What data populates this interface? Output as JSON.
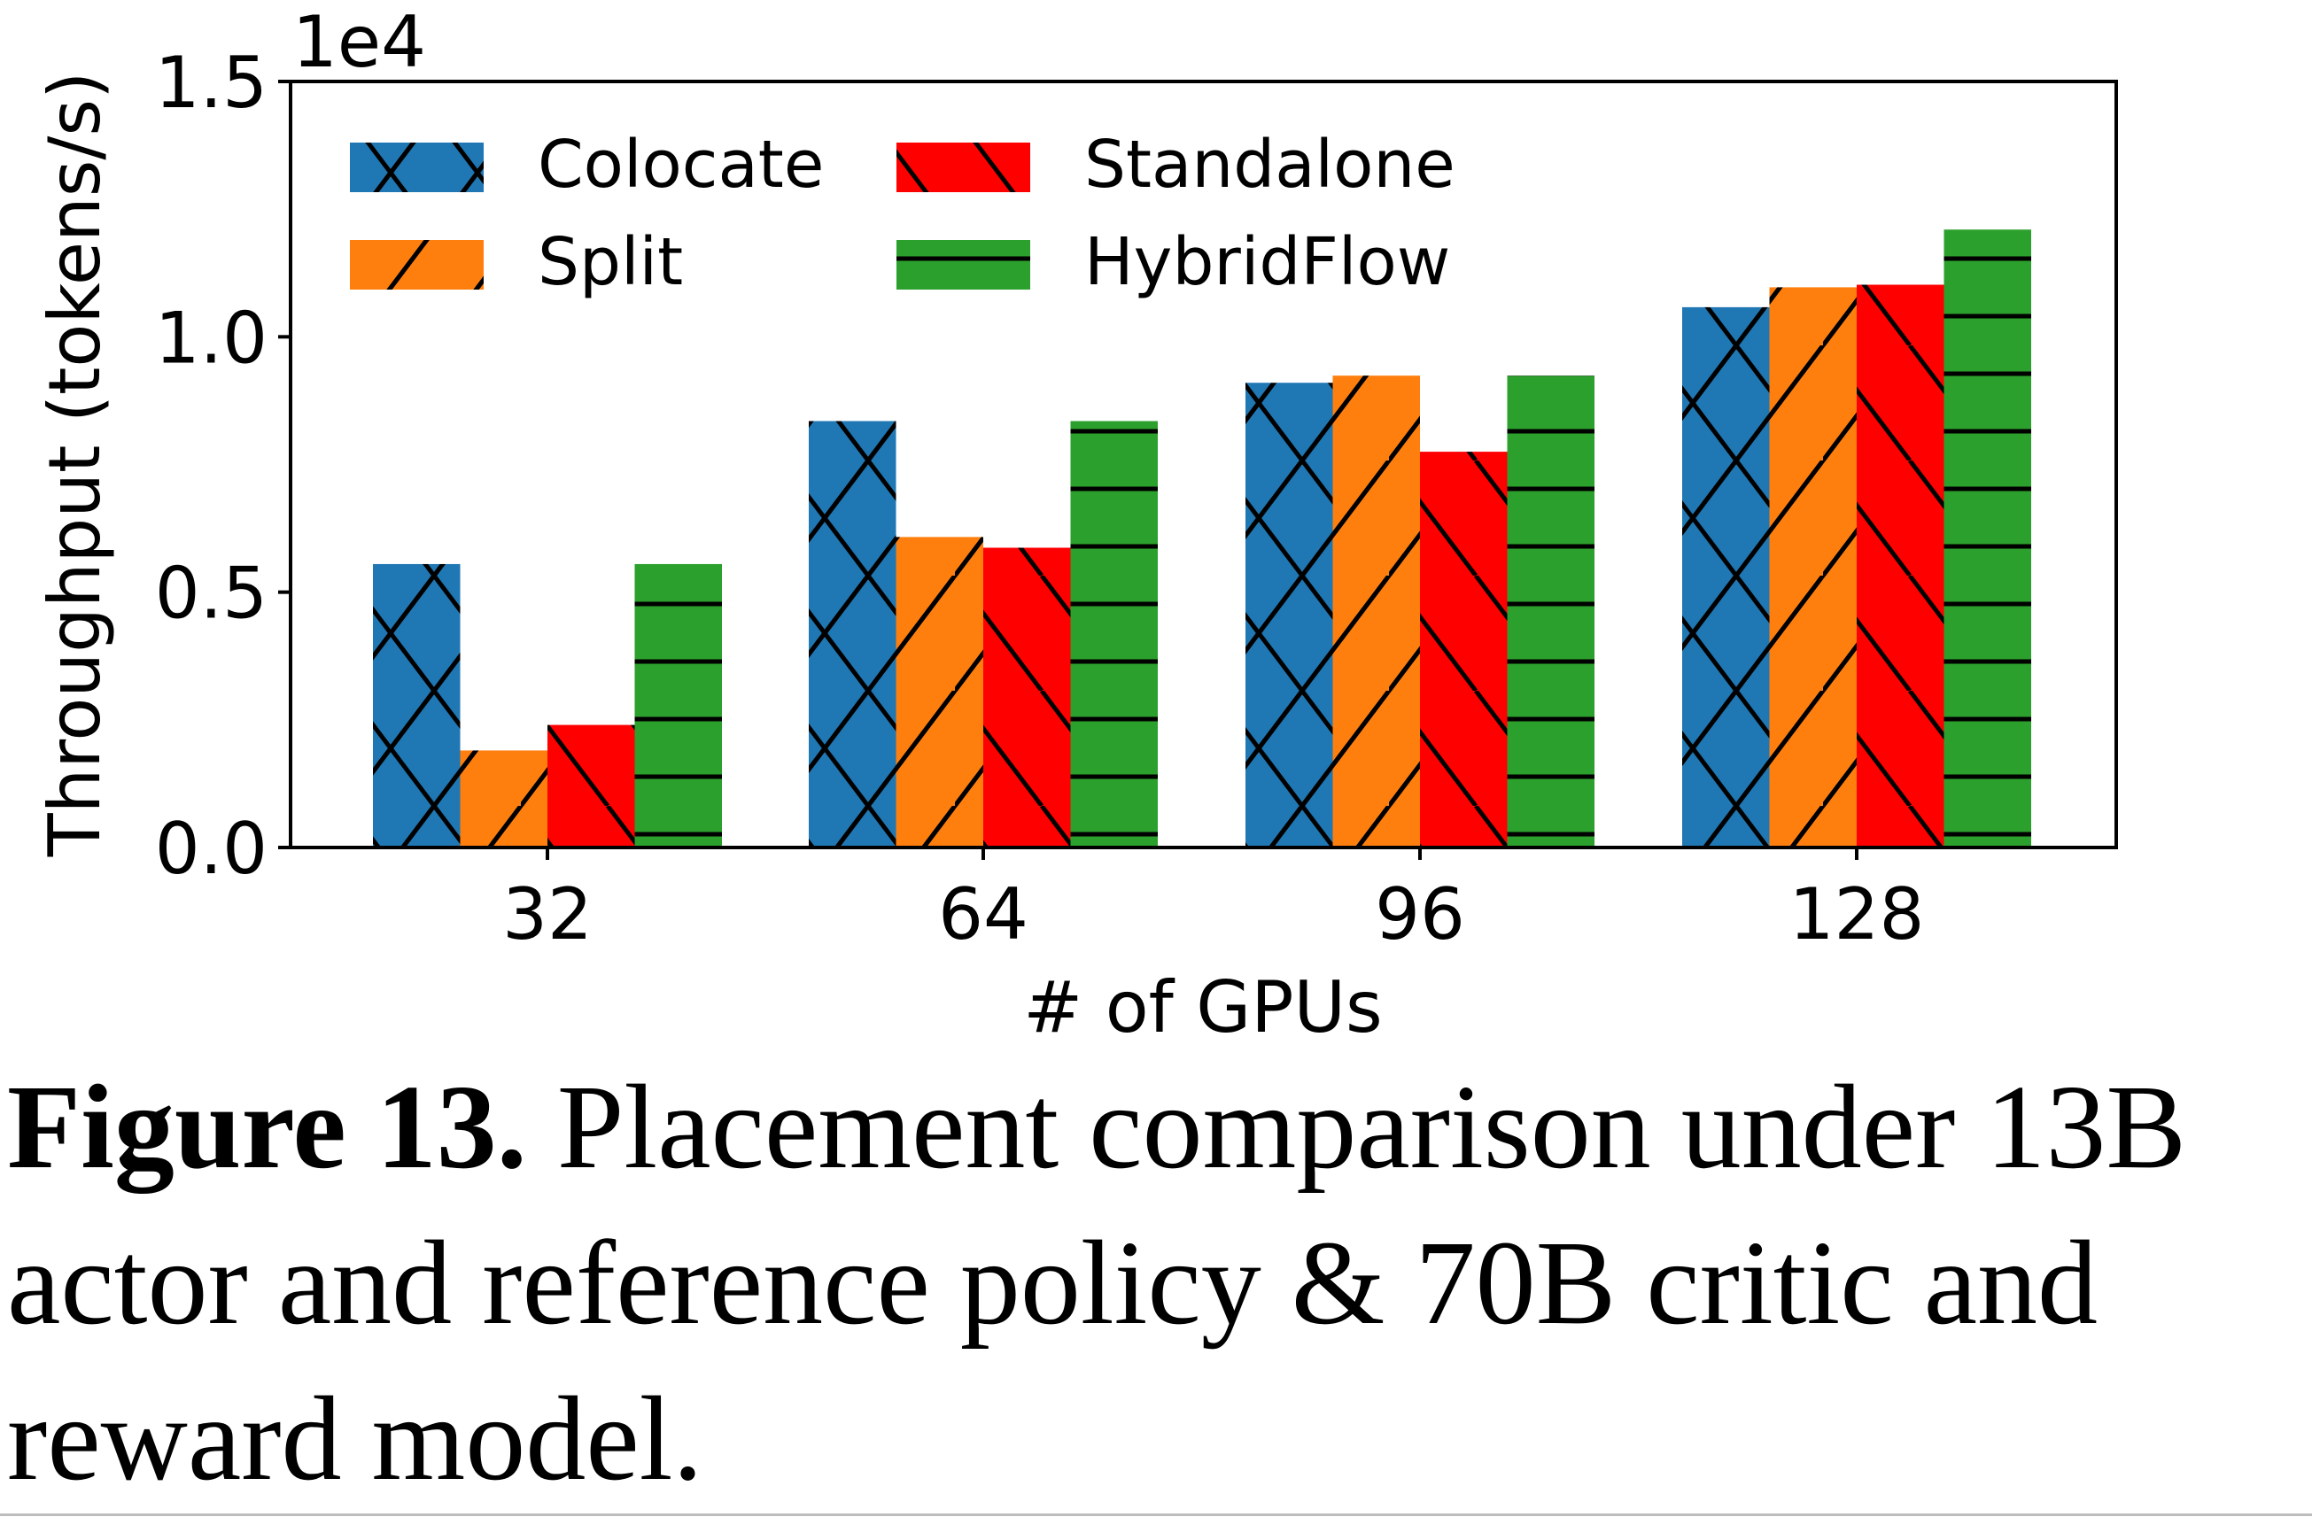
{
  "chart_data": {
    "type": "bar",
    "title": "",
    "xlabel": "# of GPUs",
    "ylabel": "Throughput (tokens/s)",
    "y_scale_label": "1e4",
    "ylim": [
      0,
      1.5
    ],
    "yticks": [
      0.0,
      0.5,
      1.0,
      1.5
    ],
    "ytick_labels": [
      "0.0",
      "0.5",
      "1.0",
      "1.5"
    ],
    "categories": [
      "32",
      "64",
      "96",
      "128"
    ],
    "grid": false,
    "legend_position": "top-left",
    "legend_columns": 2,
    "series": [
      {
        "name": "Colocate",
        "color": "#1f77b4",
        "hatch": "x",
        "values": [
          0.555,
          0.835,
          0.91,
          1.058
        ]
      },
      {
        "name": "Split",
        "color": "#ff7f0e",
        "hatch": "/",
        "values": [
          0.19,
          0.608,
          0.924,
          1.097
        ]
      },
      {
        "name": "Standalone",
        "color": "#ff0000",
        "hatch": "\\",
        "values": [
          0.24,
          0.587,
          0.775,
          1.102
        ]
      },
      {
        "name": "HybridFlow",
        "color": "#2ca02c",
        "hatch": "-",
        "values": [
          0.555,
          0.835,
          0.924,
          1.21
        ]
      }
    ]
  },
  "caption": {
    "label": "Figure 13.",
    "text": " Placement comparison under 13B actor and reference policy & 70B critic and reward model."
  }
}
